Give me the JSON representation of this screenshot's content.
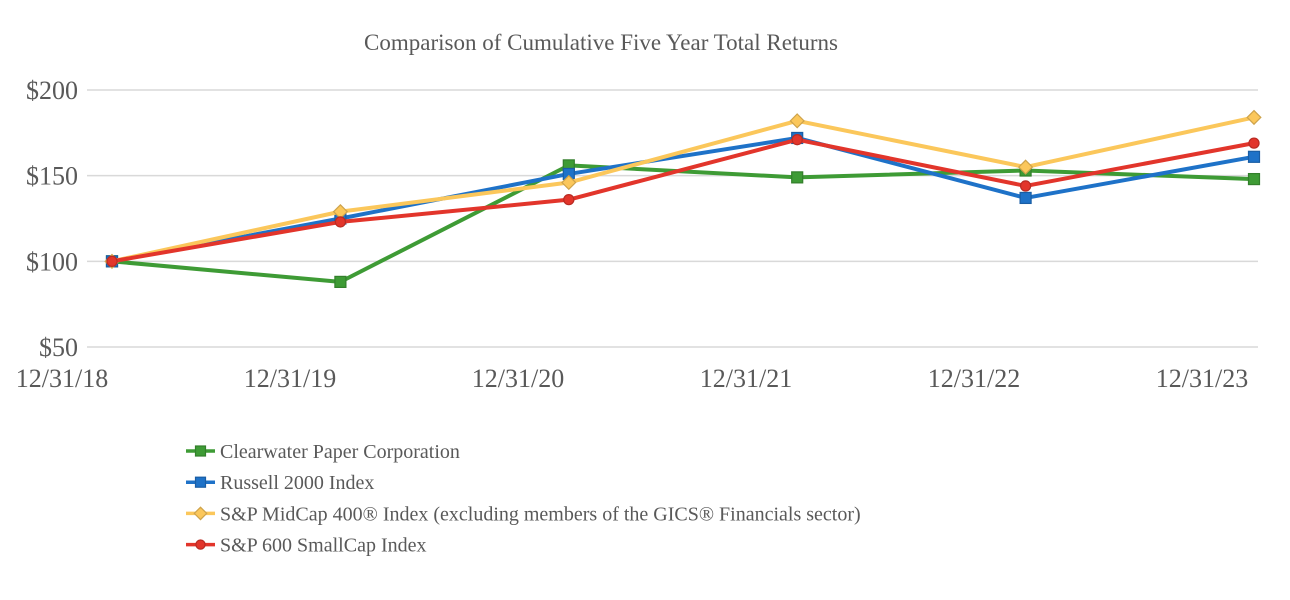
{
  "chart_data": {
    "type": "line",
    "title": "Comparison of Cumulative Five Year Total Returns",
    "categories": [
      "12/31/18",
      "12/31/19",
      "12/31/20",
      "12/31/21",
      "12/31/22",
      "12/31/23"
    ],
    "series": [
      {
        "name": "Clearwater Paper Corporation",
        "color": "#3E9B35",
        "marker": "square",
        "values": [
          100,
          88,
          156,
          149,
          153,
          148
        ]
      },
      {
        "name": "Russell 2000 Index",
        "color": "#1E72C8",
        "marker": "square",
        "values": [
          100,
          125,
          151,
          172,
          137,
          161
        ]
      },
      {
        "name": "S&P MidCap 400® Index (excluding members of the GICS® Financials sector)",
        "color": "#FBC75B",
        "marker": "diamond",
        "values": [
          100,
          129,
          146,
          182,
          155,
          184
        ]
      },
      {
        "name": "S&P 600 SmallCap Index",
        "color": "#E2352B",
        "marker": "circle",
        "values": [
          100,
          123,
          136,
          171,
          144,
          169
        ]
      }
    ],
    "y_axis": {
      "min": 50,
      "max": 200,
      "ticks": [
        {
          "value": 200,
          "label": "$200"
        },
        {
          "value": 150,
          "label": "$150"
        },
        {
          "value": 100,
          "label": "$100"
        },
        {
          "value": 50,
          "label": "$50"
        }
      ]
    },
    "grid": true,
    "legend_position": "bottom-left",
    "colors": {
      "title_text": "#595959",
      "axis_text": "#595959",
      "gridline": "#D9D9D9",
      "background": "#FFFFFF"
    }
  }
}
